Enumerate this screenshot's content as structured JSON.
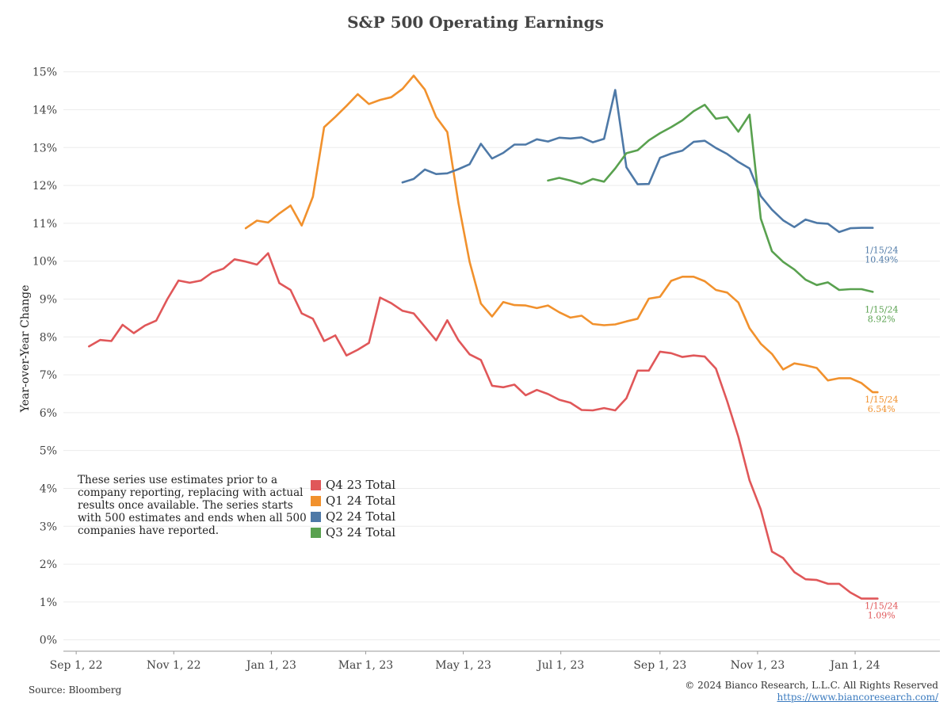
{
  "chart_data": {
    "type": "line",
    "title": "S&P 500 Operating Earnings",
    "ylabel": "Year-over-Year Change",
    "xlabel": "",
    "ylim": [
      -0.3,
      15.6
    ],
    "y_ticks": [
      0,
      1,
      2,
      3,
      4,
      5,
      6,
      7,
      8,
      9,
      10,
      11,
      12,
      13,
      14,
      15
    ],
    "y_tick_labels": [
      "0%",
      "1%",
      "2%",
      "3%",
      "4%",
      "5%",
      "6%",
      "7%",
      "8%",
      "9%",
      "10%",
      "11%",
      "12%",
      "13%",
      "14%",
      "15%"
    ],
    "x_range": [
      "2022-08-24",
      "2024-02-23"
    ],
    "x_ticks": [
      "2022-09-01",
      "2022-11-01",
      "2023-01-01",
      "2023-03-01",
      "2023-05-01",
      "2023-07-01",
      "2023-09-01",
      "2023-11-01",
      "2024-01-01"
    ],
    "x_tick_labels": [
      "Sep 1, 22",
      "Nov 1, 22",
      "Jan 1, 23",
      "Mar 1, 23",
      "May 1, 23",
      "Jul 1, 23",
      "Sep 1, 23",
      "Nov 1, 23",
      "Jan 1, 24"
    ],
    "grid": "horizontal",
    "legend_position": "bottom-left",
    "series": [
      {
        "name": "Q4 23 Total",
        "color": "#e05759",
        "x": [
          "2022-09-09",
          "2022-09-16",
          "2022-09-23",
          "2022-09-30",
          "2022-10-07",
          "2022-10-14",
          "2022-10-21",
          "2022-10-28",
          "2022-11-04",
          "2022-11-11",
          "2022-11-18",
          "2022-11-25",
          "2022-12-02",
          "2022-12-09",
          "2022-12-16",
          "2022-12-23",
          "2022-12-30",
          "2023-01-06",
          "2023-01-13",
          "2023-01-20",
          "2023-01-27",
          "2023-02-03",
          "2023-02-10",
          "2023-02-17",
          "2023-02-24",
          "2023-03-03",
          "2023-03-10",
          "2023-03-17",
          "2023-03-24",
          "2023-03-31",
          "2023-04-07",
          "2023-04-14",
          "2023-04-21",
          "2023-04-28",
          "2023-05-05",
          "2023-05-12",
          "2023-05-19",
          "2023-05-26",
          "2023-06-02",
          "2023-06-09",
          "2023-06-16",
          "2023-06-23",
          "2023-06-30",
          "2023-07-07",
          "2023-07-14",
          "2023-07-21",
          "2023-07-28",
          "2023-08-04",
          "2023-08-11",
          "2023-08-18",
          "2023-08-25",
          "2023-09-01",
          "2023-09-08",
          "2023-09-15",
          "2023-09-22",
          "2023-09-29",
          "2023-10-06",
          "2023-10-13",
          "2023-10-20",
          "2023-10-27",
          "2023-11-03",
          "2023-11-10",
          "2023-11-17",
          "2023-11-24",
          "2023-12-01",
          "2023-12-08",
          "2023-12-15",
          "2023-12-22",
          "2023-12-29",
          "2024-01-05",
          "2024-01-12",
          "2024-01-15"
        ],
        "y": [
          7.75,
          7.92,
          7.89,
          8.32,
          8.1,
          8.3,
          8.43,
          9.0,
          9.49,
          9.43,
          9.49,
          9.7,
          9.8,
          10.05,
          9.99,
          9.91,
          10.21,
          9.42,
          9.24,
          8.62,
          8.48,
          7.89,
          8.04,
          7.51,
          7.66,
          7.84,
          9.04,
          8.89,
          8.69,
          8.62,
          8.27,
          7.91,
          8.44,
          7.91,
          7.54,
          7.39,
          6.71,
          6.67,
          6.74,
          6.46,
          6.6,
          6.49,
          6.34,
          6.26,
          6.07,
          6.06,
          6.12,
          6.06,
          6.38,
          7.11,
          7.11,
          7.61,
          7.57,
          7.47,
          7.51,
          7.48,
          7.16,
          6.3,
          5.36,
          4.21,
          3.44,
          2.33,
          2.16,
          1.79,
          1.6,
          1.58,
          1.48,
          1.48,
          1.25,
          1.09,
          1.09,
          1.09
        ]
      },
      {
        "name": "Q1 24 Total",
        "color": "#f1912d",
        "x": [
          "2022-12-16",
          "2022-12-23",
          "2022-12-30",
          "2023-01-06",
          "2023-01-13",
          "2023-01-20",
          "2023-01-27",
          "2023-02-03",
          "2023-02-10",
          "2023-02-17",
          "2023-02-24",
          "2023-03-03",
          "2023-03-10",
          "2023-03-17",
          "2023-03-24",
          "2023-03-31",
          "2023-04-07",
          "2023-04-14",
          "2023-04-21",
          "2023-04-28",
          "2023-05-05",
          "2023-05-12",
          "2023-05-19",
          "2023-05-26",
          "2023-06-02",
          "2023-06-09",
          "2023-06-16",
          "2023-06-23",
          "2023-06-30",
          "2023-07-07",
          "2023-07-14",
          "2023-07-21",
          "2023-07-28",
          "2023-08-04",
          "2023-08-11",
          "2023-08-18",
          "2023-08-25",
          "2023-09-01",
          "2023-09-08",
          "2023-09-15",
          "2023-09-22",
          "2023-09-29",
          "2023-10-06",
          "2023-10-13",
          "2023-10-20",
          "2023-10-27",
          "2023-11-03",
          "2023-11-10",
          "2023-11-17",
          "2023-11-24",
          "2023-12-01",
          "2023-12-08",
          "2023-12-15",
          "2023-12-22",
          "2023-12-29",
          "2024-01-05",
          "2024-01-12",
          "2024-01-15"
        ],
        "y": [
          10.87,
          11.07,
          11.02,
          11.26,
          11.47,
          10.94,
          11.7,
          13.54,
          13.81,
          14.1,
          14.41,
          14.15,
          14.26,
          14.33,
          14.55,
          14.9,
          14.53,
          13.81,
          13.41,
          11.53,
          9.98,
          8.88,
          8.54,
          8.92,
          8.84,
          8.83,
          8.76,
          8.83,
          8.65,
          8.51,
          8.56,
          8.34,
          8.31,
          8.33,
          8.41,
          8.48,
          9.01,
          9.06,
          9.48,
          9.59,
          9.59,
          9.47,
          9.24,
          9.17,
          8.91,
          8.23,
          7.82,
          7.55,
          7.14,
          7.3,
          7.25,
          7.18,
          6.85,
          6.91,
          6.91,
          6.78,
          6.54,
          6.54
        ]
      },
      {
        "name": "Q2 24 Total",
        "color": "#4e79a7",
        "x": [
          "2023-03-24",
          "2023-03-31",
          "2023-04-07",
          "2023-04-14",
          "2023-04-21",
          "2023-04-28",
          "2023-05-05",
          "2023-05-12",
          "2023-05-19",
          "2023-05-26",
          "2023-06-02",
          "2023-06-09",
          "2023-06-16",
          "2023-06-23",
          "2023-06-30",
          "2023-07-07",
          "2023-07-14",
          "2023-07-21",
          "2023-07-28",
          "2023-08-04",
          "2023-08-11",
          "2023-08-18",
          "2023-08-25",
          "2023-09-01",
          "2023-09-08",
          "2023-09-15",
          "2023-09-22",
          "2023-09-29",
          "2023-10-06",
          "2023-10-13",
          "2023-10-20",
          "2023-10-27",
          "2023-11-03",
          "2023-11-10",
          "2023-11-17",
          "2023-11-24",
          "2023-12-01",
          "2023-12-08",
          "2023-12-15",
          "2023-12-22",
          "2023-12-29",
          "2024-01-05",
          "2024-01-12"
        ],
        "y": [
          12.08,
          12.17,
          12.42,
          12.3,
          12.32,
          12.43,
          12.56,
          13.1,
          12.71,
          12.86,
          13.08,
          13.08,
          13.22,
          13.16,
          13.26,
          13.24,
          13.27,
          13.14,
          13.23,
          14.52,
          12.48,
          12.03,
          12.04,
          12.73,
          12.84,
          12.92,
          13.15,
          13.18,
          12.99,
          12.83,
          12.62,
          12.45,
          11.72,
          11.36,
          11.08,
          10.9,
          11.1,
          11.01,
          10.99,
          10.77,
          10.87,
          10.88,
          10.88
        ]
      },
      {
        "name": "Q3 24 Total",
        "color": "#59a14f",
        "x": [
          "2023-06-23",
          "2023-06-30",
          "2023-07-07",
          "2023-07-14",
          "2023-07-21",
          "2023-07-28",
          "2023-08-04",
          "2023-08-11",
          "2023-08-18",
          "2023-08-25",
          "2023-09-01",
          "2023-09-08",
          "2023-09-15",
          "2023-09-22",
          "2023-09-29",
          "2023-10-06",
          "2023-10-13",
          "2023-10-20",
          "2023-10-27",
          "2023-11-03",
          "2023-11-10",
          "2023-11-17",
          "2023-11-24",
          "2023-12-01",
          "2023-12-08",
          "2023-12-15",
          "2023-12-22",
          "2023-12-29",
          "2024-01-05",
          "2024-01-12"
        ],
        "y": [
          12.13,
          12.2,
          12.13,
          12.04,
          12.17,
          12.1,
          12.45,
          12.85,
          12.93,
          13.19,
          13.38,
          13.54,
          13.72,
          13.96,
          14.13,
          13.76,
          13.81,
          13.42,
          13.87,
          11.12,
          10.26,
          9.98,
          9.78,
          9.51,
          9.37,
          9.44,
          9.24,
          9.26,
          9.26,
          9.19
        ]
      }
    ],
    "end_annotations": [
      {
        "series": "Q2 24 Total",
        "date_label": "1/15/24",
        "value_label": "10.49%",
        "y": 10.49
      },
      {
        "series": "Q3 24 Total",
        "date_label": "1/15/24",
        "value_label": "8.92%",
        "y": 8.92
      },
      {
        "series": "Q1 24 Total",
        "date_label": "1/15/24",
        "value_label": "6.54%",
        "y": 6.54
      },
      {
        "series": "Q4 23 Total",
        "date_label": "1/15/24",
        "value_label": "1.09%",
        "y": 1.09
      }
    ]
  },
  "note": "These series use estimates prior to a company reporting, replacing with actual results once available. The series starts with 500 estimates and ends when all 500 companies have reported.",
  "legend": [
    {
      "label": "Q4 23 Total",
      "color": "#e05759"
    },
    {
      "label": "Q1 24 Total",
      "color": "#f1912d"
    },
    {
      "label": "Q2 24 Total",
      "color": "#4e79a7"
    },
    {
      "label": "Q3 24 Total",
      "color": "#59a14f"
    }
  ],
  "footer": {
    "source": "Source: Bloomberg",
    "copyright": "© 2024 Bianco Research, L.L.C. All Rights Reserved",
    "url": "https://www.biancoresearch.com/"
  }
}
